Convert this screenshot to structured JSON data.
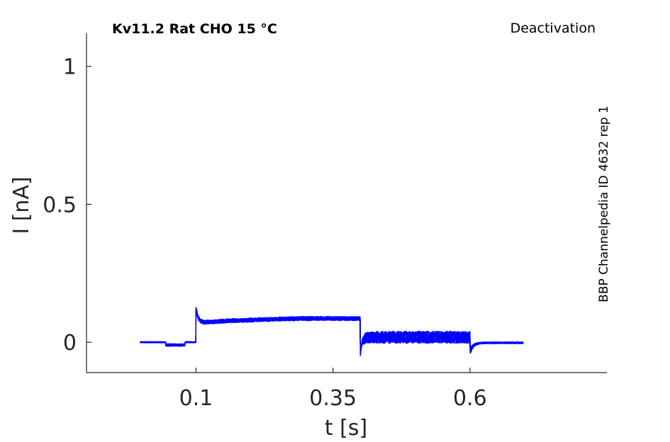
{
  "chart_data": {
    "type": "line",
    "title": "Kv11.2  Rat  CHO  15 °C",
    "protocol": "Deactivation",
    "source": "BBP Channelpedia ID 4632 rep 1",
    "xlabel": "t [s]",
    "ylabel": "I [nA]",
    "xlim": [
      -0.1,
      0.85
    ],
    "ylim": [
      -0.11,
      1.12
    ],
    "x_ticks": [
      0.1,
      0.35,
      0.6
    ],
    "x_tick_labels": [
      "0.1",
      "0.35",
      "0.6"
    ],
    "y_ticks": [
      0,
      0.5,
      1
    ],
    "y_tick_labels": [
      "0",
      "0.5",
      "1"
    ],
    "grid": false,
    "color": "#0000ff",
    "series_count": 8,
    "segments": [
      {
        "x_start": -0.002,
        "x_end": 0.1,
        "level": 0.0
      },
      {
        "x_start": 0.1,
        "x_end": 0.4,
        "level_start": 0.068,
        "level_end": 0.088,
        "onset_peak": 0.125
      },
      {
        "x_start": 0.4,
        "x_end": 0.6,
        "level": 0.018,
        "spread": 0.04,
        "onset_dip": -0.065
      },
      {
        "x_start": 0.6,
        "x_end": 0.697,
        "level": -0.002,
        "onset_dip": -0.045
      }
    ]
  }
}
